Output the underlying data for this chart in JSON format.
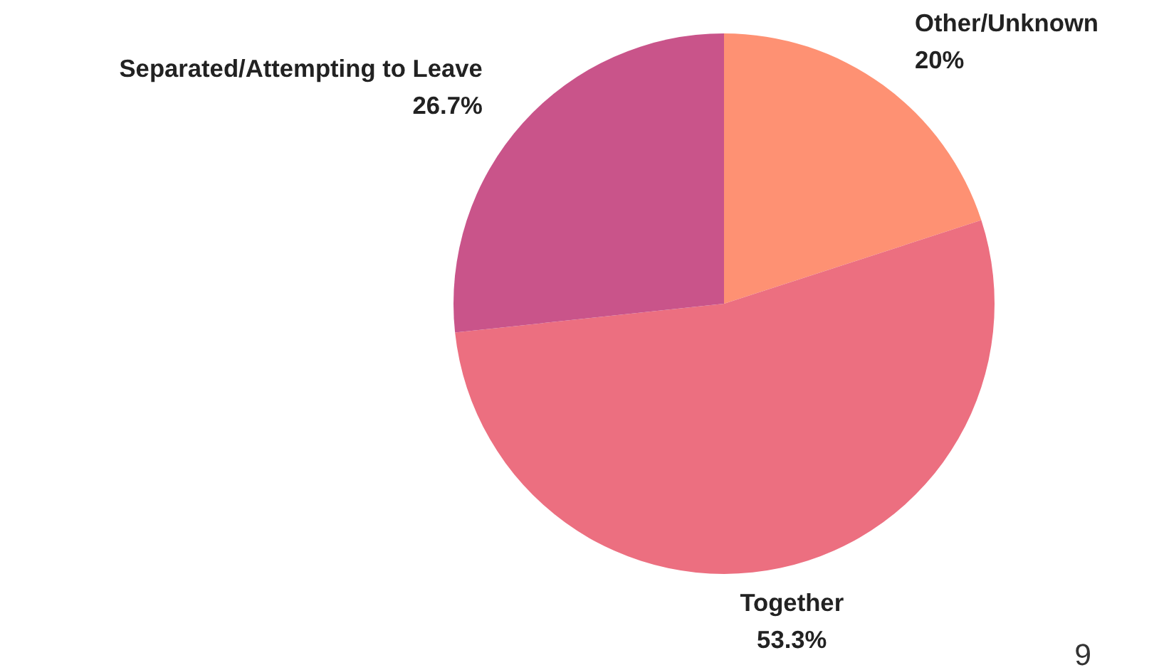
{
  "chart_data": {
    "type": "pie",
    "categories": [
      "Other/Unknown",
      "Together",
      "Separated/Attempting to Leave"
    ],
    "values": [
      20,
      53.3,
      26.7
    ],
    "colors": [
      "#fe9173",
      "#ec6f80",
      "#c9548a"
    ],
    "value_labels": [
      "20%",
      "53.3%",
      "26.7%"
    ],
    "annotations": [
      "9"
    ]
  }
}
